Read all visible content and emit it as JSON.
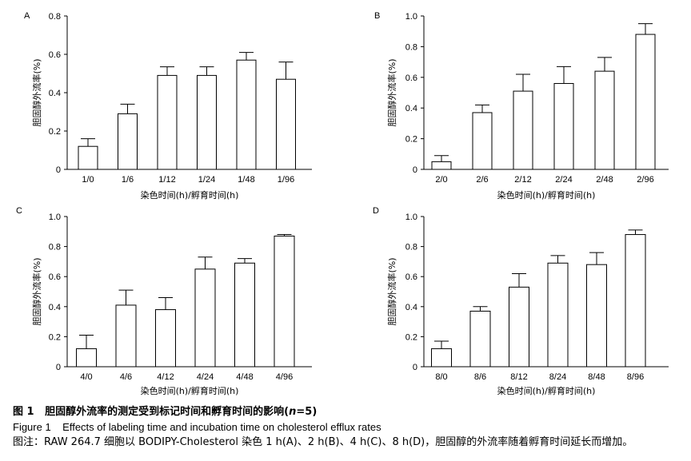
{
  "chart_data": [
    {
      "type": "bar",
      "panel": "A",
      "categories": [
        "1/0",
        "1/6",
        "1/12",
        "1/24",
        "1/48",
        "1/96"
      ],
      "values": [
        0.12,
        0.29,
        0.49,
        0.49,
        0.57,
        0.47
      ],
      "errors": [
        0.04,
        0.05,
        0.045,
        0.045,
        0.04,
        0.09
      ],
      "xlabel": "染色时间(h)/孵育时间(h)",
      "ylabel": "胆固醇外流率(%)",
      "ylim": [
        0,
        0.8
      ],
      "yticks": [
        0,
        0.2,
        0.4,
        0.6,
        0.8
      ],
      "ytick_labels": [
        "0",
        "0.2",
        "0.4",
        "0.6",
        "0.8"
      ]
    },
    {
      "type": "bar",
      "panel": "B",
      "categories": [
        "2/0",
        "2/6",
        "2/12",
        "2/24",
        "2/48",
        "2/96"
      ],
      "values": [
        0.05,
        0.37,
        0.51,
        0.56,
        0.64,
        0.88
      ],
      "errors": [
        0.04,
        0.05,
        0.11,
        0.11,
        0.09,
        0.07
      ],
      "xlabel": "染色时间(h)/孵育时间(h)",
      "ylabel": "胆固醇外流率(%)",
      "ylim": [
        0,
        1.0
      ],
      "yticks": [
        0,
        0.2,
        0.4,
        0.6,
        0.8,
        1.0
      ],
      "ytick_labels": [
        "0",
        "0.2",
        "0.4",
        "0.6",
        "0.8",
        "1.0"
      ]
    },
    {
      "type": "bar",
      "panel": "C",
      "categories": [
        "4/0",
        "4/6",
        "4/12",
        "4/24",
        "4/48",
        "4/96"
      ],
      "values": [
        0.12,
        0.41,
        0.38,
        0.65,
        0.69,
        0.87
      ],
      "errors": [
        0.09,
        0.1,
        0.08,
        0.08,
        0.03,
        0.01
      ],
      "xlabel": "染色时间(h)/孵育时间(h)",
      "ylabel": "胆固醇外流率(%)",
      "ylim": [
        0,
        1.0
      ],
      "yticks": [
        0,
        0.2,
        0.4,
        0.6,
        0.8,
        1.0
      ],
      "ytick_labels": [
        "0",
        "0.2",
        "0.4",
        "0.6",
        "0.8",
        "1.0"
      ]
    },
    {
      "type": "bar",
      "panel": "D",
      "categories": [
        "8/0",
        "8/6",
        "8/12",
        "8/24",
        "8/48",
        "8/96"
      ],
      "values": [
        0.12,
        0.37,
        0.53,
        0.69,
        0.68,
        0.88
      ],
      "errors": [
        0.05,
        0.03,
        0.09,
        0.05,
        0.08,
        0.03
      ],
      "xlabel": "染色时间(h)/孵育时间(h)",
      "ylabel": "胆固醇外流率(%)",
      "ylim": [
        0,
        1.0
      ],
      "yticks": [
        0,
        0.2,
        0.4,
        0.6,
        0.8,
        1.0
      ],
      "ytick_labels": [
        "0",
        "0.2",
        "0.4",
        "0.6",
        "0.8",
        "1.0"
      ]
    }
  ],
  "caption": {
    "cn_label": "图 1",
    "cn_title_pre": "胆固醇外流率的测定受到标记时间和孵育时间的影响(",
    "cn_title_n": "n",
    "cn_title_post": "=5)",
    "en_label": "Figure 1",
    "en_title": "Effects of labeling time and incubation time on cholesterol efflux rates",
    "note": "图注：RAW 264.7 细胞以 BODIPY-Cholesterol 染色 1 h(A)、2 h(B)、4 h(C)、8 h(D)，胆固醇的外流率随着孵育时间延长而增加。"
  }
}
